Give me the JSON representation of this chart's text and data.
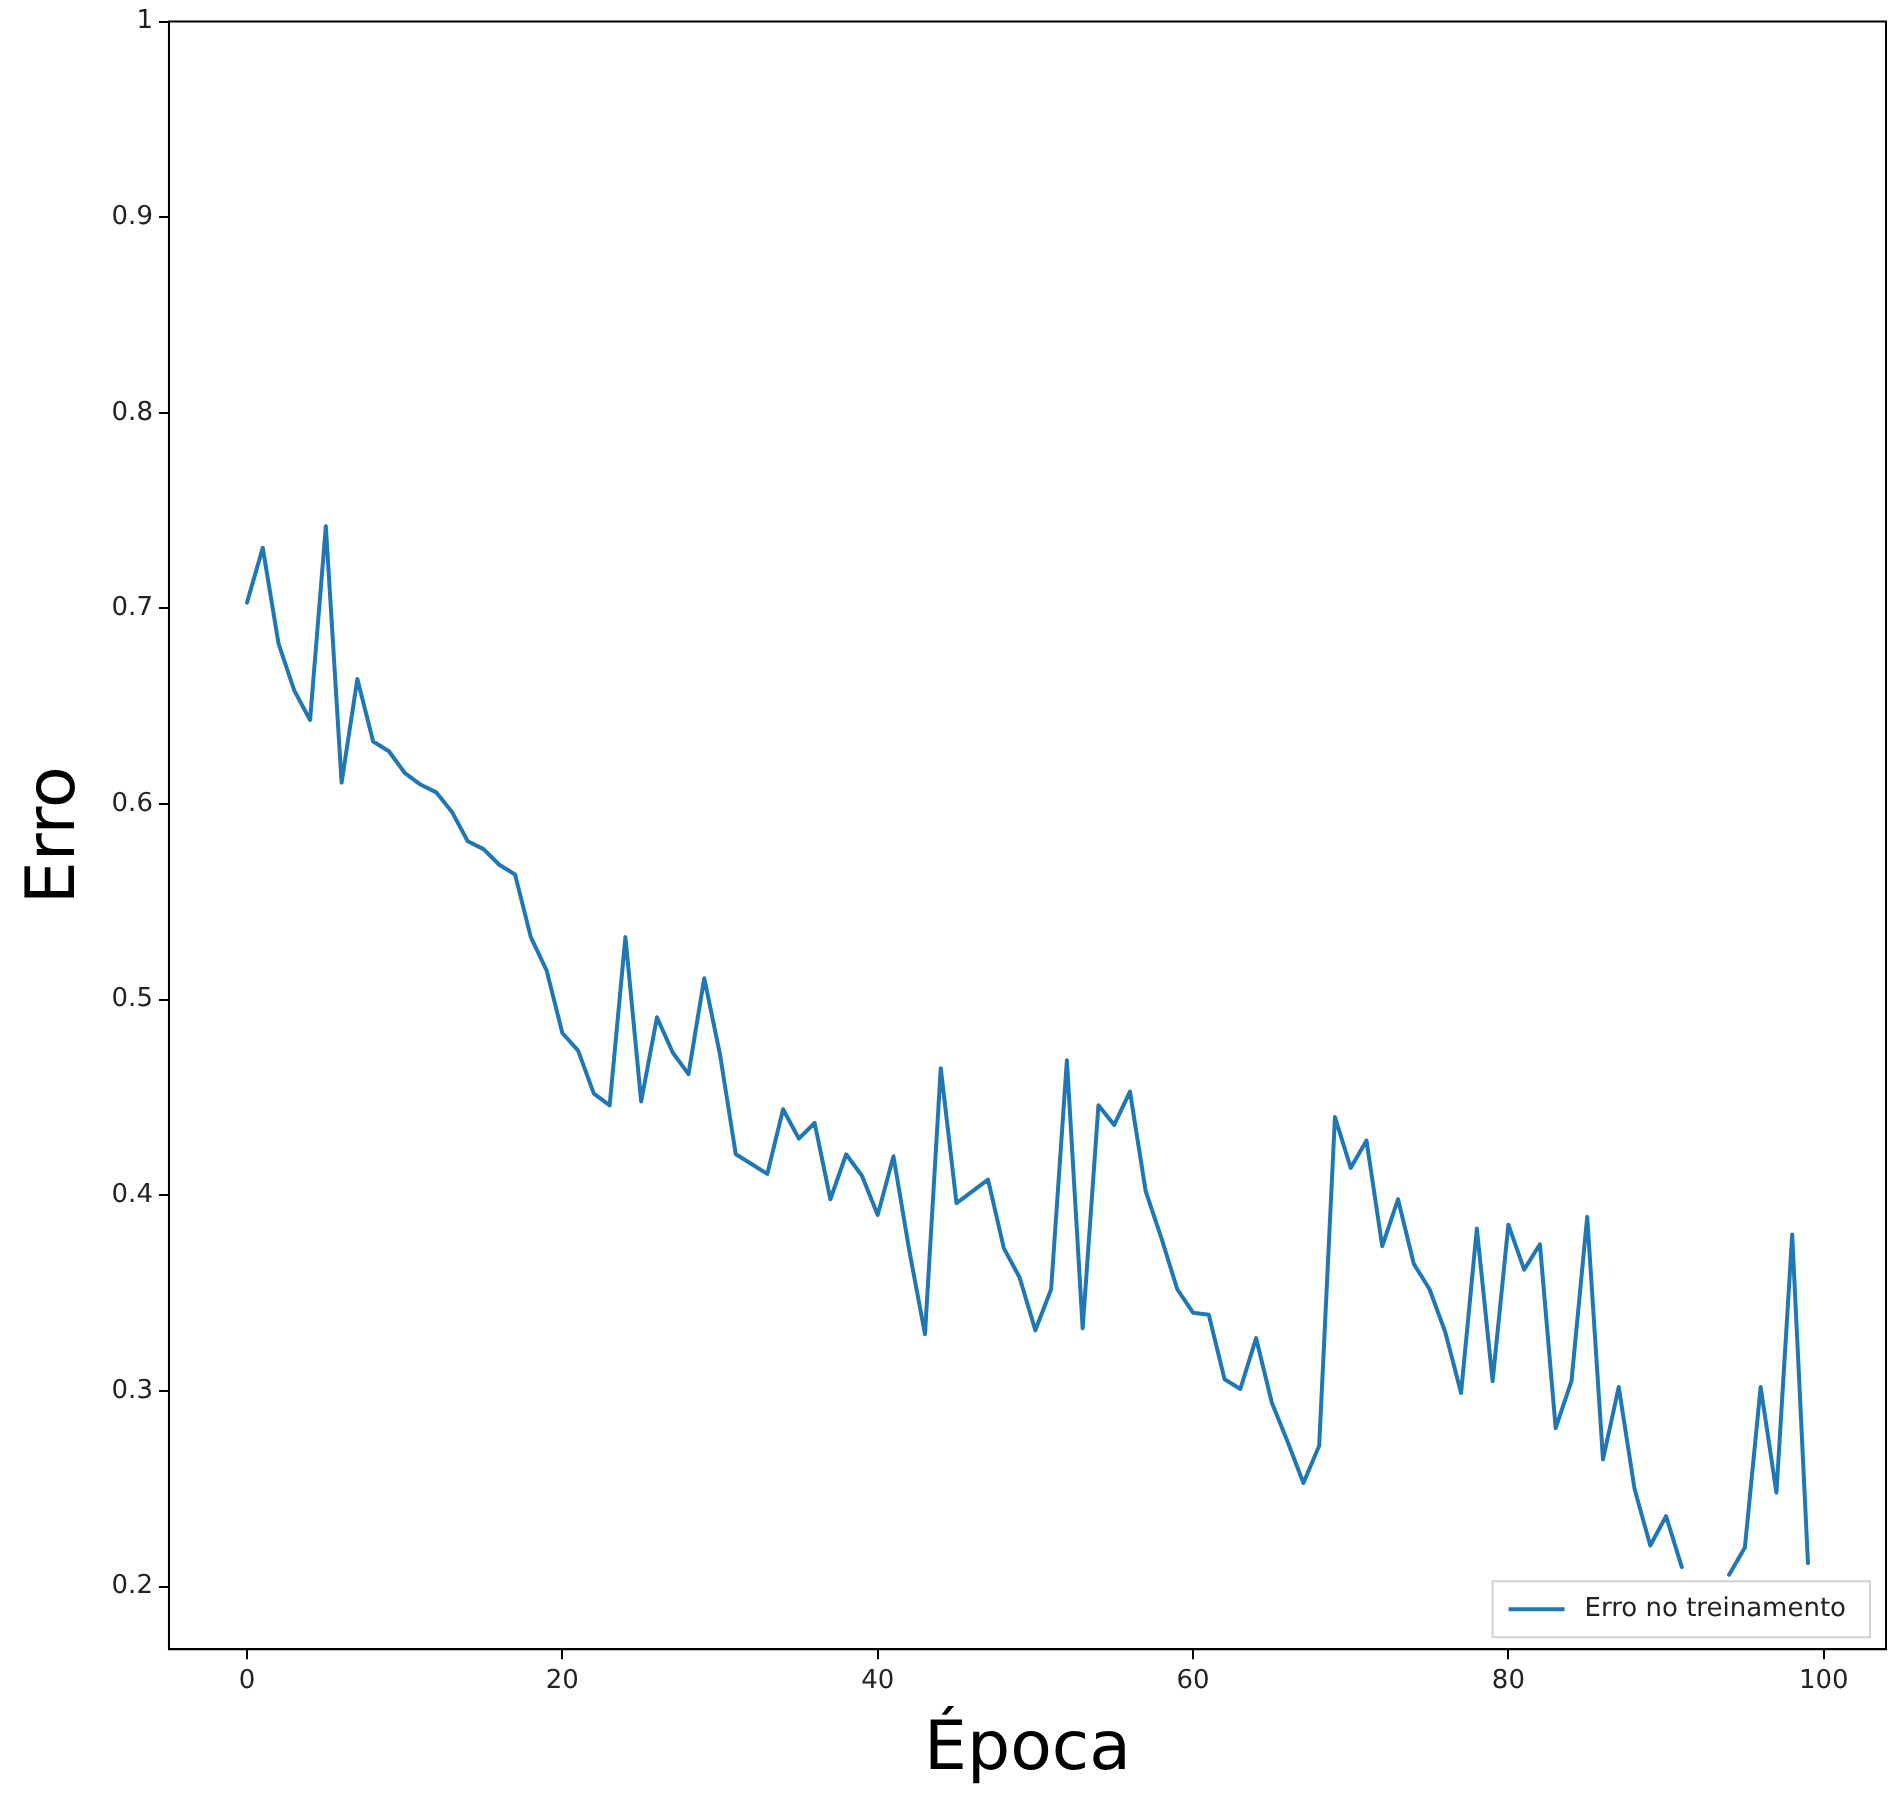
{
  "chart_data": {
    "type": "line",
    "xlabel": "Época",
    "ylabel": "Erro",
    "x": [
      0,
      1,
      2,
      3,
      4,
      5,
      6,
      7,
      8,
      9,
      10,
      11,
      12,
      13,
      14,
      15,
      16,
      17,
      18,
      19,
      20,
      21,
      22,
      23,
      24,
      25,
      26,
      27,
      28,
      29,
      30,
      31,
      32,
      33,
      34,
      35,
      36,
      37,
      38,
      39,
      40,
      41,
      42,
      43,
      44,
      45,
      46,
      47,
      48,
      49,
      50,
      51,
      52,
      53,
      54,
      55,
      56,
      57,
      58,
      59,
      60,
      61,
      62,
      63,
      64,
      65,
      66,
      67,
      68,
      69,
      70,
      71,
      72,
      73,
      74,
      75,
      76,
      77,
      78,
      79,
      80,
      81,
      82,
      83,
      84,
      85,
      86,
      87,
      88,
      89,
      90,
      91,
      92,
      93,
      94,
      95,
      96,
      97,
      98,
      99
    ],
    "series": [
      {
        "name": "Erro no treinamento",
        "color": "#1f77b4",
        "values": [
          0.703,
          0.731,
          0.682,
          0.658,
          0.643,
          0.742,
          0.611,
          0.664,
          0.632,
          0.627,
          0.616,
          0.61,
          0.606,
          0.596,
          0.581,
          0.577,
          0.569,
          0.564,
          0.532,
          0.515,
          0.483,
          0.474,
          0.452,
          0.446,
          0.532,
          0.448,
          0.491,
          0.473,
          0.462,
          0.511,
          0.472,
          0.421,
          0.416,
          0.411,
          0.444,
          0.429,
          0.437,
          0.398,
          0.421,
          0.41,
          0.39,
          0.42,
          0.372,
          0.329,
          0.465,
          0.396,
          0.402,
          0.408,
          0.373,
          0.358,
          0.331,
          0.352,
          0.469,
          0.332,
          0.446,
          0.436,
          0.453,
          0.402,
          0.378,
          0.352,
          0.34,
          0.339,
          0.306,
          0.301,
          0.327,
          0.294,
          0.274,
          0.253,
          0.272,
          0.44,
          0.414,
          0.428,
          0.374,
          0.398,
          0.365,
          0.352,
          0.33,
          0.299,
          0.383,
          0.305,
          0.385,
          0.362,
          0.375,
          0.281,
          0.305,
          0.389,
          0.265,
          0.302,
          0.25,
          0.221,
          0.236,
          0.21,
          null,
          null,
          0.206,
          0.22,
          0.302,
          0.248,
          0.38,
          0.212
        ]
      }
    ],
    "xlim": [
      -4.95,
      103.95
    ],
    "xticks": [
      0,
      20,
      40,
      60,
      80,
      100
    ],
    "ylim": [
      0.168,
      1.0
    ],
    "yticks": [
      0.2,
      0.3,
      0.4,
      0.5,
      0.6,
      0.7,
      0.8,
      0.9,
      1.0
    ],
    "grid": false,
    "legend": "bottom right",
    "marker": "none",
    "line_style": "solid"
  }
}
